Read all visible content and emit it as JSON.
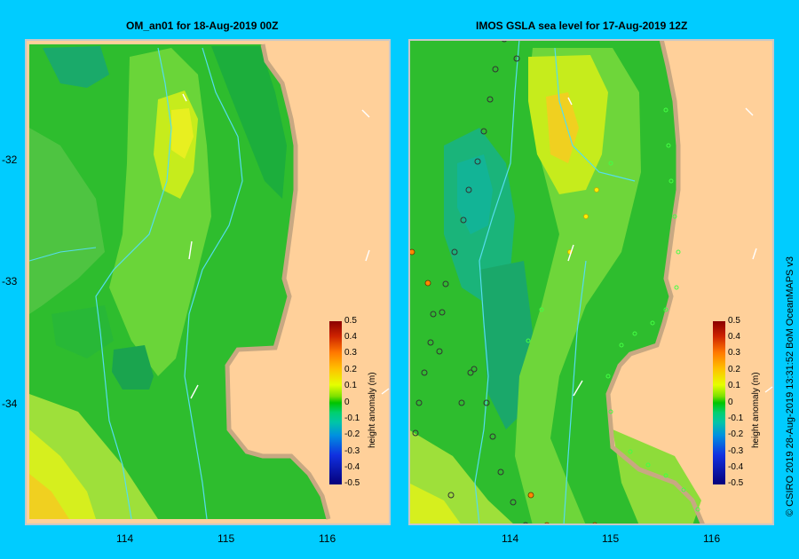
{
  "panels": [
    {
      "title": "OM_an01  for 18-Aug-2019 00Z"
    },
    {
      "title": "IMOS GSLA sea level  for 17-Aug-2019 12Z"
    }
  ],
  "lat_labels": [
    "-32",
    "-33",
    "-34"
  ],
  "lon_labels": [
    "114",
    "115",
    "116"
  ],
  "colorbar": {
    "label": "height anomaly (m)",
    "ticks": [
      "0.5",
      "0.4",
      "0.3",
      "0.2",
      "0.1",
      "0",
      "-0.1",
      "-0.2",
      "-0.3",
      "-0.4",
      "-0.5"
    ]
  },
  "credit": "© CSIRO 2019   28-Aug-2019 13:31:52 BoM OceanMAPS v3",
  "colors": {
    "land": "#ffd09a",
    "coast": "#c8a882",
    "frame": "#00ccff"
  }
}
